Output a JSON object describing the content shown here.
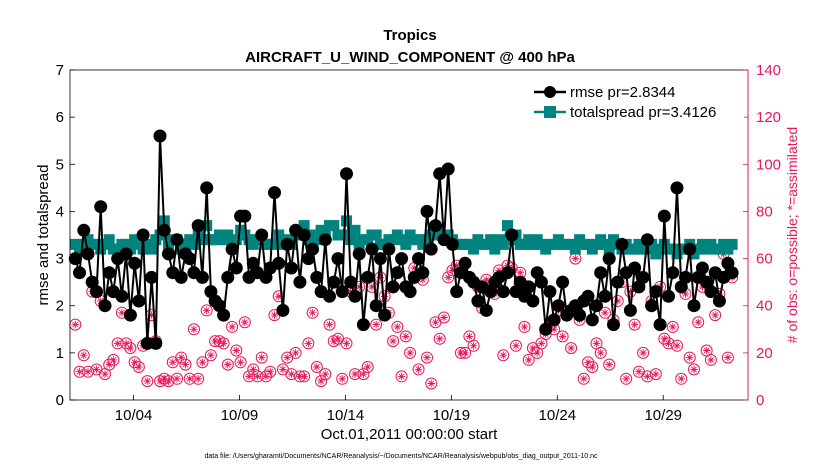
{
  "chart_data": {
    "type": "line",
    "title": "Tropics",
    "subtitle": "AIRCRAFT_U_WIND_COMPONENT @ 400 hPa",
    "xlabel": "Oct.01,2011 00:00:00 start",
    "ylabel": "rmse and totalspread",
    "ylabel_right": "# of obs: o=possible; *=assimilated",
    "footnote": "data file: /Users/gharamti/Documents/NCAR/Reanalysis/~/Documents/NCAR/Reanalysis/webpub/obs_diag_output_2011-10.nc",
    "xlim": [
      1,
      33
    ],
    "ylim": [
      0,
      7
    ],
    "ylim_right": [
      0,
      140
    ],
    "x_ticks": [
      {
        "x": 4,
        "label": "10/04"
      },
      {
        "x": 9,
        "label": "10/09"
      },
      {
        "x": 14,
        "label": "10/14"
      },
      {
        "x": 19,
        "label": "10/19"
      },
      {
        "x": 24,
        "label": "10/24"
      },
      {
        "x": 29,
        "label": "10/29"
      }
    ],
    "y_ticks": [
      "0",
      "1",
      "2",
      "3",
      "4",
      "5",
      "6",
      "7"
    ],
    "y_ticks_right": [
      "0",
      "20",
      "40",
      "60",
      "80",
      "100",
      "120",
      "140"
    ],
    "grid": false,
    "legend_position": "top-right",
    "series": [
      {
        "name": "rmse pr=2.8344",
        "color": "#000000",
        "values": [
          3.0,
          2.7,
          3.6,
          3.1,
          2.5,
          2.3,
          4.1,
          2.0,
          2.7,
          2.3,
          3.0,
          2.2,
          3.1,
          1.8,
          2.9,
          2.1,
          3.5,
          1.2,
          2.6,
          1.2,
          5.6,
          3.6,
          3.1,
          2.7,
          3.4,
          2.6,
          3.1,
          3.0,
          2.7,
          3.7,
          2.6,
          4.5,
          2.3,
          2.1,
          2.0,
          1.8,
          2.6,
          3.2,
          2.8,
          3.9,
          3.9,
          2.6,
          2.9,
          2.7,
          3.5,
          2.6,
          2.8,
          4.4,
          2.9,
          1.9,
          3.3,
          2.8,
          3.6,
          2.5,
          3.5,
          3.0,
          3.2,
          2.6,
          2.3,
          3.4,
          2.2,
          2.5,
          3.0,
          2.3,
          4.8,
          2.5,
          2.2,
          3.1,
          1.6,
          2.6,
          3.2,
          2.0,
          3.0,
          1.8,
          3.2,
          2.4,
          2.7,
          3.0,
          2.4,
          2.3,
          2.6,
          3.0,
          2.7,
          4.0,
          3.2,
          3.7,
          4.8,
          3.4,
          4.9,
          3.3,
          2.3,
          2.7,
          2.9,
          2.6,
          2.5,
          2.1,
          2.4,
          1.9,
          2.3,
          2.5,
          2.6,
          2.3,
          2.7,
          3.5,
          2.3,
          2.5,
          2.2,
          2.4,
          2.1,
          2.7,
          2.5,
          1.5,
          2.3,
          1.7,
          2.0,
          2.5,
          1.8,
          1.9,
          2.0,
          1.8,
          2.1,
          2.2,
          1.7,
          2.0,
          2.7,
          2.2,
          3.0,
          1.6,
          2.5,
          3.3,
          2.7,
          1.9,
          2.8,
          2.4,
          2.6,
          3.4,
          2.0,
          2.3,
          1.6,
          3.9,
          2.2,
          2.7,
          4.5,
          2.4,
          2.6,
          3.2,
          2.0,
          2.6,
          2.8,
          2.5,
          2.3,
          2.7,
          2.1,
          2.6,
          2.9,
          2.7
        ]
      },
      {
        "name": "totalspread pr=3.4126",
        "color": "#00847f",
        "values": [
          3.3,
          3.2,
          3.3,
          3.4,
          3.3,
          3.3,
          3.2,
          3.3,
          3.4,
          3.2,
          3.2,
          3.3,
          3.3,
          3.2,
          3.4,
          3.3,
          3.2,
          3.3,
          3.2,
          3.4,
          3.5,
          3.8,
          3.3,
          3.4,
          3.4,
          3.2,
          3.3,
          3.4,
          3.3,
          3.6,
          3.4,
          3.7,
          3.4,
          3.4,
          3.5,
          3.4,
          3.5,
          3.3,
          3.4,
          3.6,
          3.5,
          3.4,
          3.3,
          3.4,
          3.4,
          3.3,
          3.3,
          3.3,
          3.5,
          3.3,
          3.4,
          3.3,
          3.5,
          3.5,
          3.7,
          3.4,
          3.5,
          3.4,
          3.6,
          3.5,
          3.7,
          3.7,
          3.5,
          3.5,
          3.8,
          3.4,
          3.6,
          3.3,
          3.4,
          3.4,
          3.5,
          3.5,
          3.3,
          3.3,
          3.4,
          3.4,
          3.5,
          3.4,
          3.3,
          3.5,
          3.4,
          3.4,
          3.3,
          3.4,
          3.5,
          3.5,
          3.6,
          3.5,
          3.5,
          3.4,
          3.3,
          3.3,
          3.3,
          3.3,
          3.2,
          3.4,
          3.3,
          3.3,
          3.4,
          3.2,
          3.4,
          3.3,
          3.7,
          3.4,
          3.5,
          3.3,
          3.3,
          3.4,
          3.3,
          3.4,
          3.3,
          3.2,
          3.3,
          3.3,
          3.4,
          3.3,
          3.3,
          3.3,
          3.2,
          3.4,
          3.3,
          3.3,
          3.2,
          3.3,
          3.4,
          3.3,
          3.2,
          3.4,
          3.3,
          3.2,
          3.3,
          3.2,
          3.2,
          3.3,
          3.2,
          3.2,
          3.3,
          3.1,
          3.2,
          3.3,
          3.2,
          3.2,
          3.1,
          3.2,
          3.2,
          3.3,
          3.1,
          3.2,
          3.3,
          3.2,
          3.3,
          3.2,
          3.2,
          3.3,
          3.2,
          3.3
        ]
      }
    ],
    "obs_counts": {
      "name": "# of obs (o=possible, *=assimilated)",
      "color": "#e6185a",
      "values": [
        32,
        12,
        19,
        12,
        46,
        13,
        42,
        11,
        15,
        17,
        24,
        37,
        24,
        22,
        16,
        14,
        23,
        8,
        36,
        25,
        8,
        9,
        8,
        16,
        9,
        18,
        15,
        9,
        30,
        9,
        16,
        38,
        19,
        25,
        25,
        24,
        15,
        31,
        21,
        16,
        33,
        10,
        13,
        10,
        18,
        10,
        12,
        36,
        44,
        13,
        18,
        11,
        20,
        10,
        10,
        24,
        37,
        14,
        8,
        11,
        32,
        25,
        26,
        9,
        24,
        46,
        11,
        48,
        11,
        14,
        48,
        32,
        52,
        44,
        37,
        25,
        31,
        10,
        27,
        20,
        56,
        13,
        51,
        18,
        7,
        33,
        26,
        35,
        52,
        55,
        57,
        20,
        20,
        27,
        23,
        48,
        39,
        51,
        48,
        45,
        55,
        19,
        57,
        56,
        23,
        54,
        31,
        17,
        22,
        20,
        24,
        28,
        32,
        30,
        38,
        27,
        36,
        22,
        60,
        34,
        9,
        16,
        14,
        24,
        20,
        37,
        15,
        34,
        42,
        50,
        9,
        46,
        32,
        12,
        20,
        10,
        42,
        11,
        48,
        26,
        24,
        31,
        23,
        9,
        45,
        18,
        13,
        33,
        48,
        21,
        17,
        36,
        45,
        62,
        18,
        52,
        0
      ]
    }
  }
}
